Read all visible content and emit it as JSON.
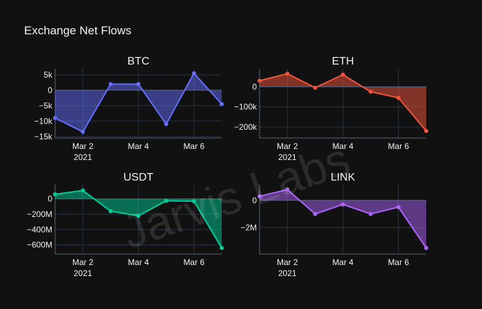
{
  "title": "Exchange Net Flows",
  "watermark": "Jarvis Labs",
  "x_tick_labels": [
    {
      "x": 1,
      "lines": [
        "Mar 2",
        "2021"
      ]
    },
    {
      "x": 3,
      "lines": [
        "Mar 4"
      ]
    },
    {
      "x": 5,
      "lines": [
        "Mar 6"
      ]
    }
  ],
  "chart_data": [
    {
      "type": "area",
      "title": "BTC",
      "color": "#636efa",
      "x": [
        "2021-03-01",
        "2021-03-02",
        "2021-03-03",
        "2021-03-04",
        "2021-03-05",
        "2021-03-06",
        "2021-03-07"
      ],
      "values": [
        -9000,
        -13500,
        2000,
        2000,
        -11000,
        5500,
        -4500
      ],
      "ylim": [
        -15500,
        7000
      ],
      "ticks": [
        {
          "v": 5000,
          "label": "5k"
        },
        {
          "v": 0,
          "label": "0"
        },
        {
          "v": -5000,
          "label": "−5k"
        },
        {
          "v": -10000,
          "label": "−10k"
        },
        {
          "v": -15000,
          "label": "−15k"
        }
      ]
    },
    {
      "type": "area",
      "title": "ETH",
      "color": "#ef553b",
      "x": [
        "2021-03-01",
        "2021-03-02",
        "2021-03-03",
        "2021-03-04",
        "2021-03-05",
        "2021-03-06",
        "2021-03-07"
      ],
      "values": [
        30000,
        65000,
        -5000,
        60000,
        -25000,
        -55000,
        -220000
      ],
      "ylim": [
        -255000,
        90000
      ],
      "ticks": [
        {
          "v": 0,
          "label": "0"
        },
        {
          "v": -100000,
          "label": "−100k"
        },
        {
          "v": -200000,
          "label": "−200k"
        }
      ]
    },
    {
      "type": "area",
      "title": "USDT",
      "color": "#00cc96",
      "x": [
        "2021-03-01",
        "2021-03-02",
        "2021-03-03",
        "2021-03-04",
        "2021-03-05",
        "2021-03-06",
        "2021-03-07"
      ],
      "values": [
        60000000,
        110000000,
        -160000000,
        -220000000,
        -25000000,
        -30000000,
        -640000000
      ],
      "ylim": [
        -720000000,
        185000000
      ],
      "ticks": [
        {
          "v": 0,
          "label": "0"
        },
        {
          "v": -200000000,
          "label": "−200M"
        },
        {
          "v": -400000000,
          "label": "−400M"
        },
        {
          "v": -600000000,
          "label": "−600M"
        }
      ]
    },
    {
      "type": "area",
      "title": "LINK",
      "color": "#ab63fa",
      "x": [
        "2021-03-01",
        "2021-03-02",
        "2021-03-03",
        "2021-03-04",
        "2021-03-05",
        "2021-03-06",
        "2021-03-07"
      ],
      "values": [
        300000,
        800000,
        -1000000,
        -300000,
        -1000000,
        -500000,
        -3500000
      ],
      "ylim": [
        -3950000,
        1150000
      ],
      "ticks": [
        {
          "v": 0,
          "label": "0"
        },
        {
          "v": -2000000,
          "label": "−2M"
        }
      ]
    }
  ]
}
